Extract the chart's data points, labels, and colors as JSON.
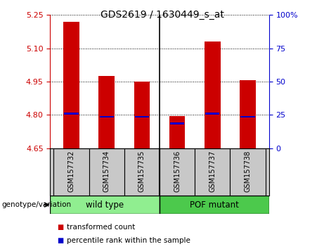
{
  "title": "GDS2619 / 1630449_s_at",
  "samples": [
    "GSM157732",
    "GSM157734",
    "GSM157735",
    "GSM157736",
    "GSM157737",
    "GSM157738"
  ],
  "transformed_count": [
    5.22,
    4.975,
    4.951,
    4.793,
    5.13,
    4.955
  ],
  "percentile_rank_value": [
    4.805,
    4.792,
    4.792,
    4.762,
    4.805,
    4.792
  ],
  "ylim": [
    4.65,
    5.25
  ],
  "y_ticks": [
    4.65,
    4.8,
    4.95,
    5.1,
    5.25
  ],
  "right_ylim": [
    0,
    100
  ],
  "right_yticks": [
    0,
    25,
    50,
    75,
    100
  ],
  "right_tick_labels": [
    "0",
    "25",
    "50",
    "75",
    "100%"
  ],
  "bar_bottom": 4.65,
  "bar_width": 0.45,
  "group_color_wt": "#90EE90",
  "group_color_pof": "#4CC94C",
  "red_color": "#CC0000",
  "blue_color": "#0000CC",
  "axis_left_color": "#CC0000",
  "axis_right_color": "#0000CC",
  "plot_bg_color": "#FFFFFF",
  "label_bg_color": "#C8C8C8",
  "genotype_label": "genotype/variation",
  "legend_red_label": "transformed count",
  "legend_blue_label": "percentile rank within the sample",
  "wt_label": "wild type",
  "pof_label": "POF mutant",
  "n_wt": 3,
  "n_pof": 3
}
